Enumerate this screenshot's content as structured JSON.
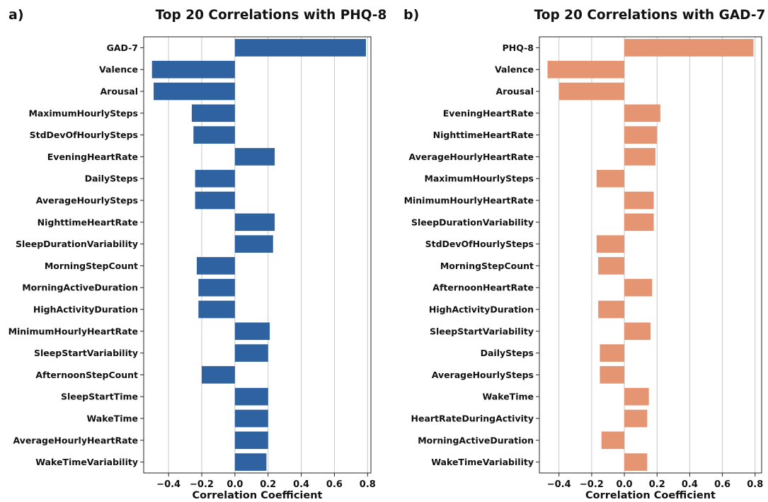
{
  "chart_data": [
    {
      "type": "bar",
      "orientation": "horizontal",
      "panel_label": "a)",
      "title": "Top 20 Correlations with PHQ-8",
      "xlabel": "Correlation Coefficient",
      "ylabel": "",
      "xlim": [
        -0.55,
        0.82
      ],
      "xticks": [
        -0.4,
        -0.2,
        0.0,
        0.2,
        0.4,
        0.6,
        0.8
      ],
      "xtick_labels": [
        "−0.4",
        "−0.2",
        "0.0",
        "0.2",
        "0.4",
        "0.6",
        "0.8"
      ],
      "grid": "vertical",
      "color": "#2f62a1",
      "categories": [
        "GAD-7",
        "Valence",
        "Arousal",
        "MaximumHourlySteps",
        "StdDevOfHourlySteps",
        "EveningHeartRate",
        "DailySteps",
        "AverageHourlySteps",
        "NighttimeHeartRate",
        "SleepDurationVariability",
        "MorningStepCount",
        "MorningActiveDuration",
        "HighActivityDuration",
        "MinimumHourlyHeartRate",
        "SleepStartVariability",
        "AfternoonStepCount",
        "SleepStartTime",
        "WakeTime",
        "AverageHourlyHeartRate",
        "WakeTimeVariability"
      ],
      "values": [
        0.79,
        -0.5,
        -0.49,
        -0.26,
        -0.25,
        0.24,
        -0.24,
        -0.24,
        0.24,
        0.23,
        -0.23,
        -0.22,
        -0.22,
        0.21,
        0.2,
        -0.2,
        0.2,
        0.2,
        0.2,
        0.19
      ]
    },
    {
      "type": "bar",
      "orientation": "horizontal",
      "panel_label": "b)",
      "title": "Top 20 Correlations with GAD-7",
      "xlabel": "Correlation Coefficient",
      "ylabel": "",
      "xlim": [
        -0.52,
        0.84
      ],
      "xticks": [
        -0.4,
        -0.2,
        0.0,
        0.2,
        0.4,
        0.6,
        0.8
      ],
      "xtick_labels": [
        "−0.4",
        "−0.2",
        "0.0",
        "0.2",
        "0.4",
        "0.6",
        "0.8"
      ],
      "grid": "vertical",
      "color": "#e59572",
      "categories": [
        "PHQ-8",
        "Valence",
        "Arousal",
        "EveningHeartRate",
        "NighttimeHeartRate",
        "AverageHourlyHeartRate",
        "MaximumHourlySteps",
        "MinimumHourlyHeartRate",
        "SleepDurationVariability",
        "StdDevOfHourlySteps",
        "MorningStepCount",
        "AfternoonHeartRate",
        "HighActivityDuration",
        "SleepStartVariability",
        "DailySteps",
        "AverageHourlySteps",
        "WakeTime",
        "HeartRateDuringActivity",
        "MorningActiveDuration",
        "WakeTimeVariability"
      ],
      "values": [
        0.79,
        -0.47,
        -0.4,
        0.22,
        0.2,
        0.19,
        -0.17,
        0.18,
        0.18,
        -0.17,
        -0.16,
        0.17,
        -0.16,
        0.16,
        -0.15,
        -0.15,
        0.15,
        0.14,
        -0.14,
        0.14
      ]
    }
  ]
}
